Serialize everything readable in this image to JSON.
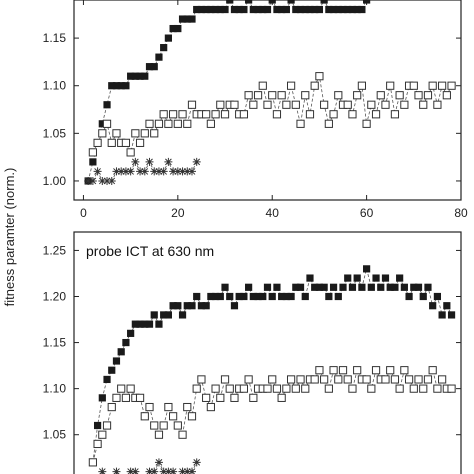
{
  "figure": {
    "ylabel": "fitness paramter (norm.)"
  },
  "chart_data": [
    {
      "type": "scatter",
      "panel": "top",
      "xlim": [
        -2,
        80
      ],
      "ylim": [
        0.98,
        1.19
      ],
      "xticks": [
        0,
        20,
        40,
        60,
        80
      ],
      "xtick_labels": [
        "0",
        "20",
        "40",
        "60",
        "80"
      ],
      "yticks": [
        1.0,
        1.05,
        1.1,
        1.15
      ],
      "ytick_labels": [
        "1.00",
        "1.05",
        "1.10",
        "1.15"
      ],
      "annotation": "",
      "series": [
        {
          "marker": "filled-square",
          "x": [
            1,
            2,
            3,
            4,
            5,
            6,
            7,
            8,
            9,
            10,
            11,
            12,
            13,
            14,
            15,
            16,
            17,
            18,
            19,
            20,
            21,
            22,
            23,
            24,
            25,
            26,
            27,
            28,
            29,
            30,
            31,
            32,
            33,
            34,
            35,
            36,
            37,
            38,
            39,
            40,
            41,
            42,
            43,
            44,
            45,
            46,
            47,
            48,
            49,
            50,
            51,
            52,
            53,
            54,
            55,
            56,
            57,
            58,
            59,
            60
          ],
          "y": [
            1.0,
            1.02,
            1.04,
            1.06,
            1.08,
            1.1,
            1.1,
            1.1,
            1.1,
            1.11,
            1.11,
            1.11,
            1.11,
            1.12,
            1.12,
            1.13,
            1.14,
            1.15,
            1.16,
            1.16,
            1.17,
            1.17,
            1.17,
            1.18,
            1.18,
            1.18,
            1.18,
            1.18,
            1.18,
            1.18,
            1.19,
            1.18,
            1.18,
            1.18,
            1.19,
            1.18,
            1.18,
            1.18,
            1.18,
            1.19,
            1.18,
            1.18,
            1.18,
            1.19,
            1.18,
            1.18,
            1.18,
            1.18,
            1.18,
            1.18,
            1.19,
            1.18,
            1.18,
            1.18,
            1.18,
            1.18,
            1.18,
            1.18,
            1.18,
            1.19
          ]
        },
        {
          "marker": "open-square",
          "x": [
            2,
            3,
            4,
            5,
            6,
            7,
            8,
            9,
            10,
            11,
            12,
            13,
            14,
            15,
            16,
            17,
            18,
            19,
            20,
            21,
            22,
            23,
            24,
            25,
            26,
            27,
            28,
            29,
            30,
            31,
            32,
            33,
            34,
            35,
            36,
            37,
            38,
            39,
            40,
            41,
            42,
            43,
            44,
            45,
            46,
            47,
            48,
            49,
            50,
            51,
            52,
            53,
            54,
            55,
            56,
            57,
            58,
            59,
            60,
            61,
            62,
            63,
            64,
            65,
            66,
            67,
            68,
            69,
            70,
            71,
            72,
            73,
            74,
            75,
            76,
            77,
            78
          ],
          "y": [
            1.03,
            1.04,
            1.05,
            1.06,
            1.04,
            1.05,
            1.04,
            1.04,
            1.03,
            1.05,
            1.04,
            1.05,
            1.06,
            1.05,
            1.06,
            1.07,
            1.06,
            1.07,
            1.06,
            1.07,
            1.06,
            1.08,
            1.07,
            1.07,
            1.07,
            1.06,
            1.07,
            1.08,
            1.07,
            1.08,
            1.08,
            1.07,
            1.07,
            1.09,
            1.08,
            1.09,
            1.1,
            1.08,
            1.09,
            1.07,
            1.09,
            1.08,
            1.1,
            1.08,
            1.06,
            1.09,
            1.07,
            1.1,
            1.11,
            1.08,
            1.06,
            1.07,
            1.09,
            1.08,
            1.08,
            1.07,
            1.09,
            1.1,
            1.06,
            1.08,
            1.07,
            1.09,
            1.08,
            1.1,
            1.07,
            1.09,
            1.08,
            1.1,
            1.1,
            1.09,
            1.08,
            1.09,
            1.1,
            1.08,
            1.1,
            1.09,
            1.1
          ]
        },
        {
          "marker": "asterisk",
          "x": [
            1,
            2,
            3,
            4,
            5,
            6,
            7,
            8,
            9,
            10,
            11,
            12,
            13,
            14,
            15,
            16,
            17,
            18,
            19,
            20,
            21,
            22,
            23,
            24
          ],
          "y": [
            1.0,
            1.0,
            1.01,
            1.0,
            1.0,
            1.0,
            1.01,
            1.01,
            1.01,
            1.01,
            1.02,
            1.01,
            1.01,
            1.02,
            1.01,
            1.01,
            1.01,
            1.02,
            1.01,
            1.01,
            1.01,
            1.01,
            1.01,
            1.02
          ]
        }
      ]
    },
    {
      "type": "scatter",
      "panel": "bottom",
      "xlim": [
        -2,
        80
      ],
      "ylim": [
        0.99,
        1.27
      ],
      "xticks": [],
      "xtick_labels": [],
      "yticks": [
        1.0,
        1.05,
        1.1,
        1.15,
        1.2,
        1.25
      ],
      "ytick_labels": [
        "1.00",
        "1.05",
        "1.10",
        "1.15",
        "1.20",
        "1.25"
      ],
      "annotation": "probe ICT at 630 nm",
      "series": [
        {
          "marker": "filled-square",
          "x": [
            2,
            3,
            4,
            5,
            6,
            7,
            8,
            9,
            10,
            11,
            12,
            13,
            14,
            15,
            16,
            17,
            18,
            19,
            20,
            21,
            22,
            23,
            24,
            25,
            26,
            27,
            28,
            29,
            30,
            31,
            32,
            33,
            34,
            35,
            36,
            37,
            38,
            39,
            40,
            41,
            42,
            43,
            44,
            45,
            46,
            47,
            48,
            49,
            50,
            51,
            52,
            53,
            54,
            55,
            56,
            57,
            58,
            59,
            60,
            61,
            62,
            63,
            64,
            65,
            66,
            67,
            68,
            69,
            70,
            71,
            72,
            73,
            74,
            75,
            76,
            77,
            78
          ],
          "y": [
            1.02,
            1.06,
            1.09,
            1.11,
            1.12,
            1.13,
            1.14,
            1.15,
            1.16,
            1.17,
            1.17,
            1.17,
            1.17,
            1.18,
            1.17,
            1.18,
            1.18,
            1.19,
            1.19,
            1.18,
            1.19,
            1.19,
            1.2,
            1.19,
            1.19,
            1.2,
            1.2,
            1.2,
            1.21,
            1.2,
            1.19,
            1.2,
            1.2,
            1.21,
            1.2,
            1.2,
            1.2,
            1.21,
            1.2,
            1.21,
            1.2,
            1.2,
            1.2,
            1.21,
            1.21,
            1.2,
            1.22,
            1.21,
            1.21,
            1.21,
            1.2,
            1.21,
            1.2,
            1.21,
            1.22,
            1.21,
            1.22,
            1.21,
            1.23,
            1.21,
            1.22,
            1.21,
            1.22,
            1.21,
            1.21,
            1.22,
            1.21,
            1.2,
            1.21,
            1.21,
            1.2,
            1.21,
            1.19,
            1.2,
            1.18,
            1.19,
            1.18
          ]
        },
        {
          "marker": "open-square",
          "x": [
            2,
            3,
            4,
            5,
            6,
            7,
            8,
            9,
            10,
            11,
            12,
            13,
            14,
            15,
            16,
            17,
            18,
            19,
            20,
            21,
            22,
            23,
            24,
            25,
            26,
            27,
            28,
            29,
            30,
            31,
            32,
            33,
            34,
            35,
            36,
            37,
            38,
            39,
            40,
            41,
            42,
            43,
            44,
            45,
            46,
            47,
            48,
            49,
            50,
            51,
            52,
            53,
            54,
            55,
            56,
            57,
            58,
            59,
            60,
            61,
            62,
            63,
            64,
            65,
            66,
            67,
            68,
            69,
            70,
            71,
            72,
            73,
            74,
            75,
            76,
            77,
            78
          ],
          "y": [
            1.02,
            1.04,
            1.05,
            1.06,
            1.08,
            1.09,
            1.1,
            1.09,
            1.1,
            1.09,
            1.09,
            1.07,
            1.08,
            1.06,
            1.05,
            1.06,
            1.08,
            1.07,
            1.06,
            1.05,
            1.08,
            1.07,
            1.1,
            1.11,
            1.09,
            1.08,
            1.1,
            1.09,
            1.11,
            1.1,
            1.09,
            1.1,
            1.1,
            1.11,
            1.09,
            1.1,
            1.1,
            1.1,
            1.11,
            1.1,
            1.09,
            1.1,
            1.11,
            1.1,
            1.11,
            1.1,
            1.11,
            1.11,
            1.12,
            1.11,
            1.1,
            1.12,
            1.11,
            1.12,
            1.11,
            1.1,
            1.12,
            1.11,
            1.11,
            1.1,
            1.12,
            1.11,
            1.11,
            1.12,
            1.11,
            1.1,
            1.12,
            1.11,
            1.1,
            1.11,
            1.1,
            1.11,
            1.12,
            1.1,
            1.11,
            1.1,
            1.1
          ]
        },
        {
          "marker": "asterisk",
          "x": [
            1,
            2,
            3,
            4,
            5,
            6,
            7,
            8,
            9,
            10,
            11,
            12,
            13,
            14,
            15,
            16,
            17,
            18,
            19,
            20,
            21,
            22,
            23,
            24
          ],
          "y": [
            1.0,
            1.0,
            1.0,
            1.01,
            1.0,
            1.0,
            1.01,
            1.0,
            1.0,
            1.01,
            1.01,
            1.0,
            1.0,
            1.01,
            1.01,
            1.02,
            1.01,
            1.01,
            1.01,
            1.0,
            1.01,
            1.01,
            1.01,
            1.02
          ]
        }
      ]
    }
  ]
}
